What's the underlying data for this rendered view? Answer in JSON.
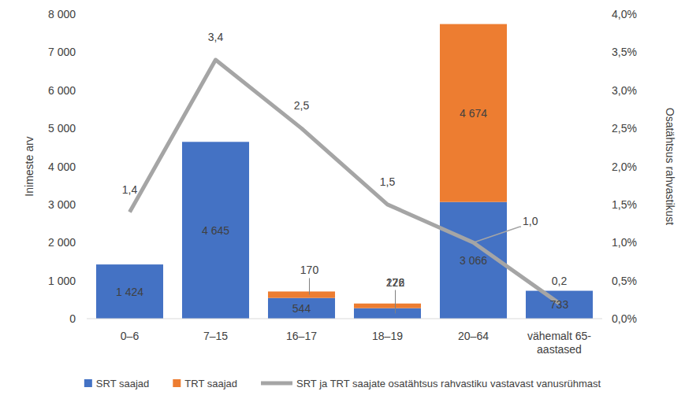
{
  "chart_data": {
    "type": "bar",
    "stacked": true,
    "data_labels": true,
    "grid": false,
    "legend": "bottom",
    "y_label": "Inimeste arv",
    "y2_label": "Osatähtsus rahvastikust",
    "categories": [
      "0–6",
      "7–15",
      "16–17",
      "18–19",
      "20–64",
      "vähemalt 65-aastased"
    ],
    "ylim": [
      0,
      8000
    ],
    "yticks": [
      0,
      {
        "value": 1000,
        "label": "1 000"
      },
      {
        "value": 2000,
        "label": "2 000"
      },
      {
        "value": 3000,
        "label": "3 000"
      },
      {
        "value": 4000,
        "label": "4 000"
      },
      {
        "value": 5000,
        "label": "5 000"
      },
      {
        "value": 6000,
        "label": "6 000"
      },
      {
        "value": 7000,
        "label": "7 000"
      },
      {
        "value": 8000,
        "label": "8 000"
      }
    ],
    "y2lim": [
      0,
      4
    ],
    "y2ticks": [
      {
        "value": 0,
        "label": "0,0%"
      },
      {
        "value": 0.5,
        "label": "0,5%"
      },
      {
        "value": 1,
        "label": "1,0%"
      },
      {
        "value": 1.5,
        "label": "1,5%"
      },
      {
        "value": 2,
        "label": "2,0%"
      },
      {
        "value": 2.5,
        "label": "2,5%"
      },
      {
        "value": 3,
        "label": "3,0%"
      },
      {
        "value": 3.5,
        "label": "3,5%"
      },
      {
        "value": 4,
        "label": "4,0%"
      }
    ],
    "series": [
      {
        "name": "SRT saajad",
        "type": "bar",
        "color": "#4472c4",
        "values": [
          1424,
          4645,
          544,
          276,
          3066,
          733
        ],
        "value_labels": [
          "1 424",
          "4 645",
          "544",
          "276",
          "3 066",
          "733"
        ]
      },
      {
        "name": "TRT saajad",
        "type": "bar",
        "color": "#ed7d31",
        "values": [
          null,
          null,
          170,
          122,
          4674,
          null
        ],
        "value_labels": [
          null,
          null,
          "170",
          "122",
          "4 674",
          null
        ]
      },
      {
        "name": "SRT ja TRT saajate osatähtsus rahvastiku vastavast vanusrühmast",
        "type": "line",
        "axis": "y2",
        "color": "#a5a5a5",
        "marker": "none",
        "line_style": "solid",
        "values": [
          1.4,
          3.4,
          2.5,
          1.5,
          1.0,
          0.2
        ],
        "value_labels": [
          "1,4",
          "3,4",
          "2,5",
          "1,5",
          "1,0",
          "0,2"
        ]
      }
    ]
  }
}
